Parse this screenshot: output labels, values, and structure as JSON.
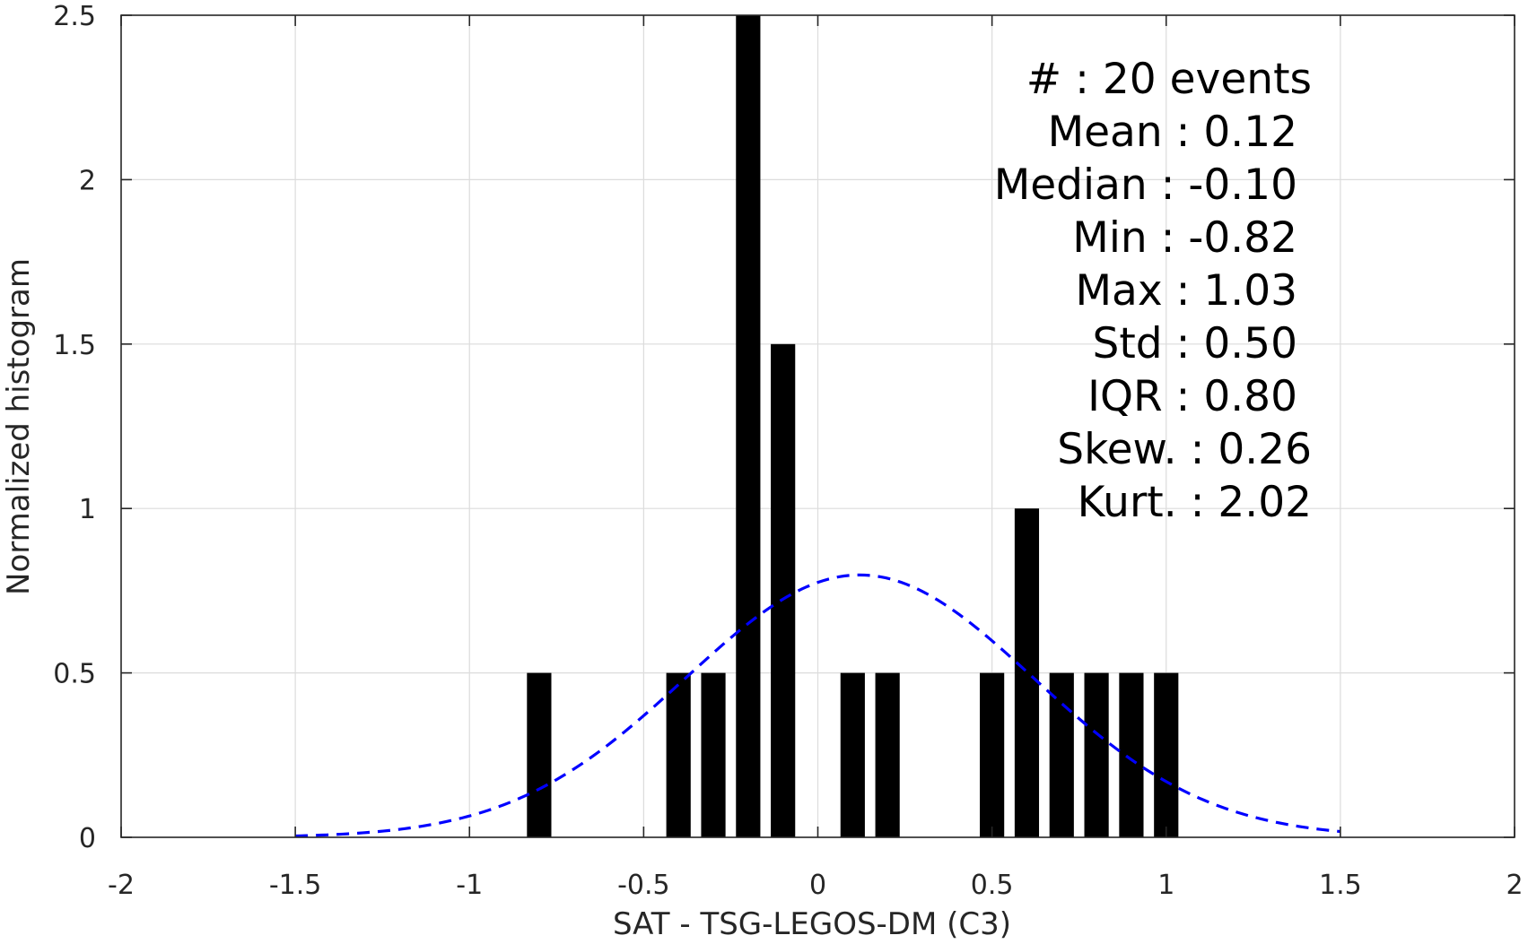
{
  "chart_data": {
    "type": "bar",
    "xlabel": "SAT - TSG-LEGOS-DM (C3)",
    "ylabel": "Normalized histogram",
    "xlim": [
      -2,
      2
    ],
    "ylim": [
      0,
      2.5
    ],
    "xticks": [
      -2,
      -1.5,
      -1,
      -0.5,
      0,
      0.5,
      1,
      1.5,
      2
    ],
    "yticks": [
      0,
      0.5,
      1,
      1.5,
      2,
      2.5
    ],
    "grid": true,
    "bin_width": 0.1,
    "bar_color": "#000000",
    "bars": [
      {
        "x": -0.8,
        "value": 0.5
      },
      {
        "x": -0.4,
        "value": 0.5
      },
      {
        "x": -0.3,
        "value": 0.5
      },
      {
        "x": -0.2,
        "value": 2.5
      },
      {
        "x": -0.1,
        "value": 1.5
      },
      {
        "x": 0.1,
        "value": 0.5
      },
      {
        "x": 0.2,
        "value": 0.5
      },
      {
        "x": 0.5,
        "value": 0.5
      },
      {
        "x": 0.6,
        "value": 1.0
      },
      {
        "x": 0.7,
        "value": 0.5
      },
      {
        "x": 0.8,
        "value": 0.5
      },
      {
        "x": 0.9,
        "value": 0.5
      },
      {
        "x": 1.0,
        "value": 0.5
      }
    ],
    "fit_curve": {
      "type": "normal",
      "mean": 0.12,
      "std": 0.5,
      "x_range": [
        -1.5,
        1.5
      ],
      "color": "#0000ff",
      "style": "dashed"
    },
    "annotations": [
      "#  : 20 events",
      "Mean : 0.12",
      "Median : -0.10",
      "Min : -0.82",
      "Max : 1.03",
      "Std : 0.50",
      "IQR : 0.80",
      "Skew. : 0.26",
      "Kurt. : 2.02"
    ]
  }
}
